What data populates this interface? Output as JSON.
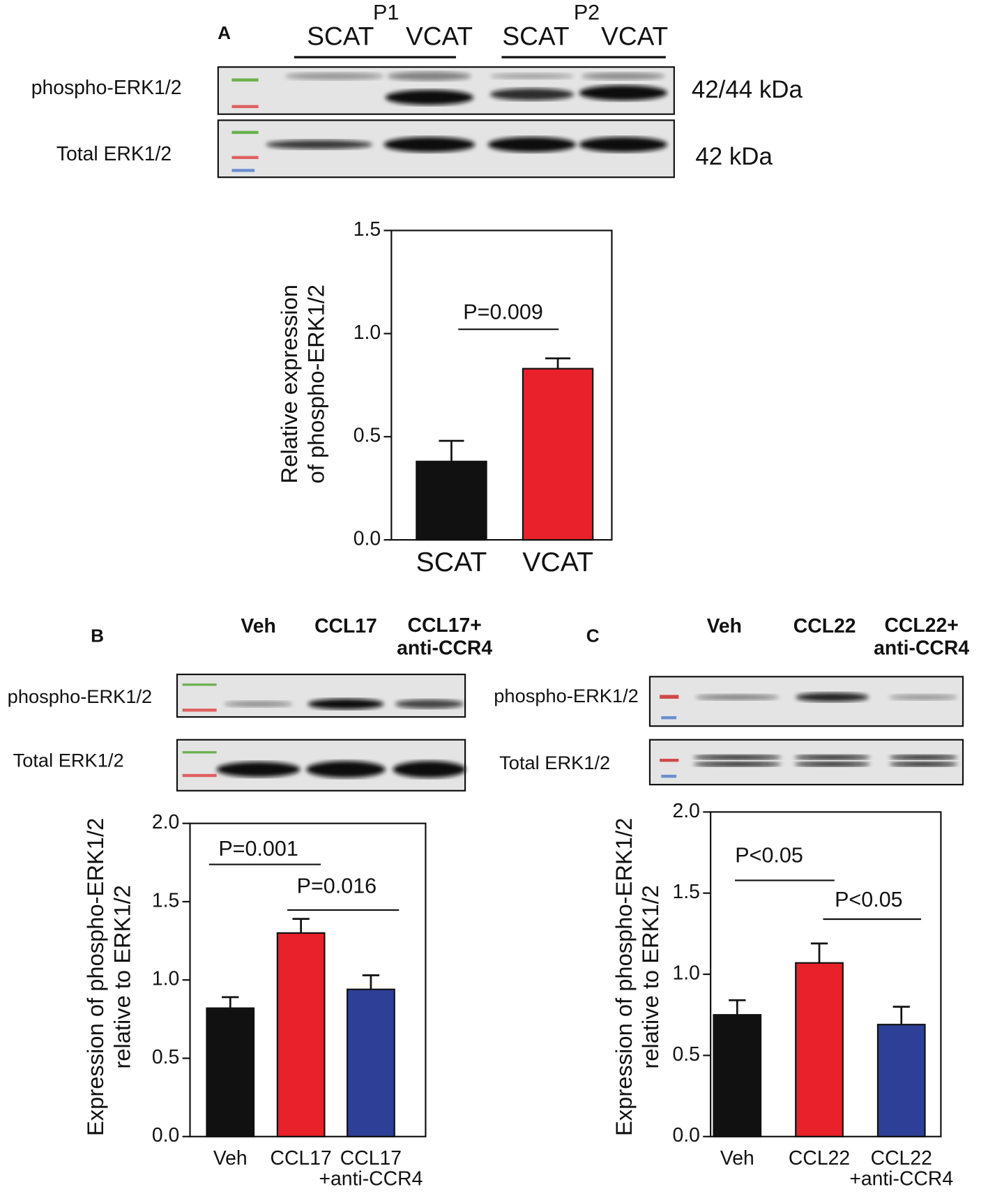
{
  "blots": [
    {
      "panel": "A",
      "groups": [
        "P1",
        "P2"
      ],
      "lanes": [
        "SCAT",
        "VCAT",
        "SCAT",
        "VCAT"
      ],
      "rows": [
        "phospho-ERK1/2",
        "Total ERK1/2"
      ],
      "sizes": [
        "42/44 kDa",
        "42 kDa"
      ]
    },
    {
      "panel": "B",
      "lanes": [
        "Veh",
        "CCL17",
        "CCL17+\nanti-CCR4"
      ],
      "rows": [
        "phospho-ERK1/2",
        "Total ERK1/2"
      ]
    },
    {
      "panel": "C",
      "lanes": [
        "Veh",
        "CCL22",
        "CCL22+\nanti-CCR4"
      ],
      "rows": [
        "phospho-ERK1/2",
        "Total ERK1/2"
      ]
    }
  ],
  "chart_data": [
    {
      "type": "bar",
      "y_label": "Relative expression\nof phospho-ERK1/2",
      "categories": [
        "SCAT",
        "VCAT"
      ],
      "values": [
        0.38,
        0.83
      ],
      "errors": [
        0.1,
        0.05
      ],
      "colors": [
        "#111111",
        "#e8212a"
      ],
      "ylim": [
        0,
        1.5
      ],
      "yticks": [
        {
          "value": 0,
          "label": "0.0"
        },
        0.5,
        {
          "value": 1,
          "label": "1.0"
        },
        1.5
      ],
      "annotations": [
        "P=0.009"
      ]
    },
    {
      "type": "bar",
      "y_label": "Expression of phospho-ERK1/2\nrelative to ERK1/2",
      "categories": [
        "Veh",
        "CCL17",
        "CCL17\n+anti-CCR4"
      ],
      "values": [
        0.82,
        1.3,
        0.94
      ],
      "errors": [
        0.07,
        0.09,
        0.09
      ],
      "colors": [
        "#111111",
        "#e8212a",
        "#2e3f97"
      ],
      "ylim": [
        0,
        2
      ],
      "yticks": [
        {
          "value": 0,
          "label": "0.0"
        },
        0.5,
        {
          "value": 1,
          "label": "1.0"
        },
        1.5,
        {
          "value": 2,
          "label": "2.0"
        }
      ],
      "annotations": [
        "P=0.001",
        "P=0.016"
      ]
    },
    {
      "type": "bar",
      "y_label": "Expression of phospho-ERK1/2\nrelative to ERK1/2",
      "categories": [
        "Veh",
        "CCL22",
        "CCL22\n+anti-CCR4"
      ],
      "values": [
        0.75,
        1.07,
        0.69
      ],
      "errors": [
        0.09,
        0.12,
        0.11
      ],
      "colors": [
        "#111111",
        "#e8212a",
        "#2e3f97"
      ],
      "ylim": [
        0,
        2
      ],
      "yticks": [
        {
          "value": 0,
          "label": "0.0"
        },
        0.5,
        {
          "value": 1,
          "label": "1.0"
        },
        1.5,
        {
          "value": 2,
          "label": "2.0"
        }
      ],
      "annotations": [
        "P<0.05",
        "P<0.05"
      ]
    }
  ]
}
